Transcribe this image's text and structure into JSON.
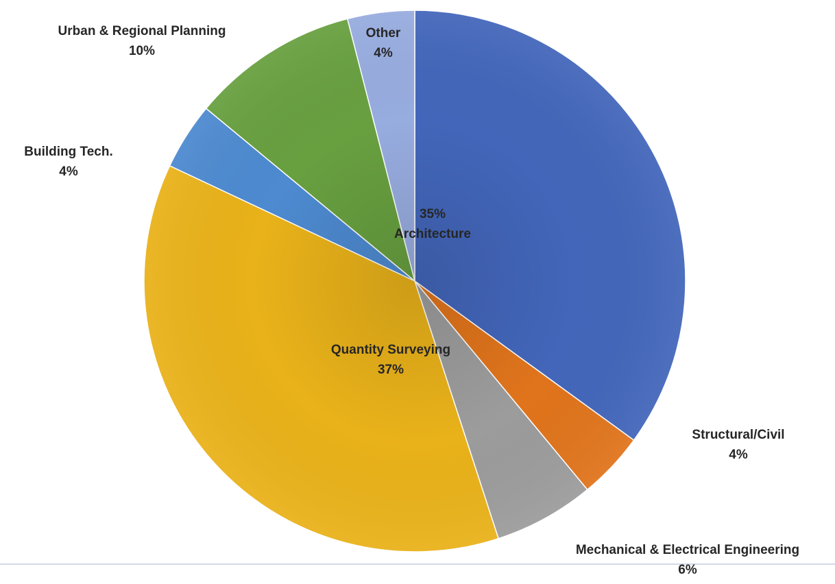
{
  "chart_data": {
    "type": "pie",
    "start": "12 o'clock",
    "direction": "clockwise",
    "slices": [
      {
        "label": "Architecture",
        "value": 35,
        "display": "35%",
        "color": "#4366ba"
      },
      {
        "label": "Structural/Civil",
        "value": 4,
        "display": "4%",
        "color": "#e0741c"
      },
      {
        "label": "Mechanical & Electrical Engineering",
        "value": 6,
        "display": "6%",
        "color": "#9c9c9c"
      },
      {
        "label": "Quantity Surveying",
        "value": 37,
        "display": "37%",
        "color": "#e9b21a"
      },
      {
        "label": "Building Tech.",
        "value": 4,
        "display": "4%",
        "color": "#4d8ad0"
      },
      {
        "label": "Urban & Regional Planning",
        "value": 10,
        "display": "10%",
        "color": "#68a040"
      },
      {
        "label": "Other",
        "value": 4,
        "display": "4%",
        "color": "#97acdf"
      }
    ]
  }
}
